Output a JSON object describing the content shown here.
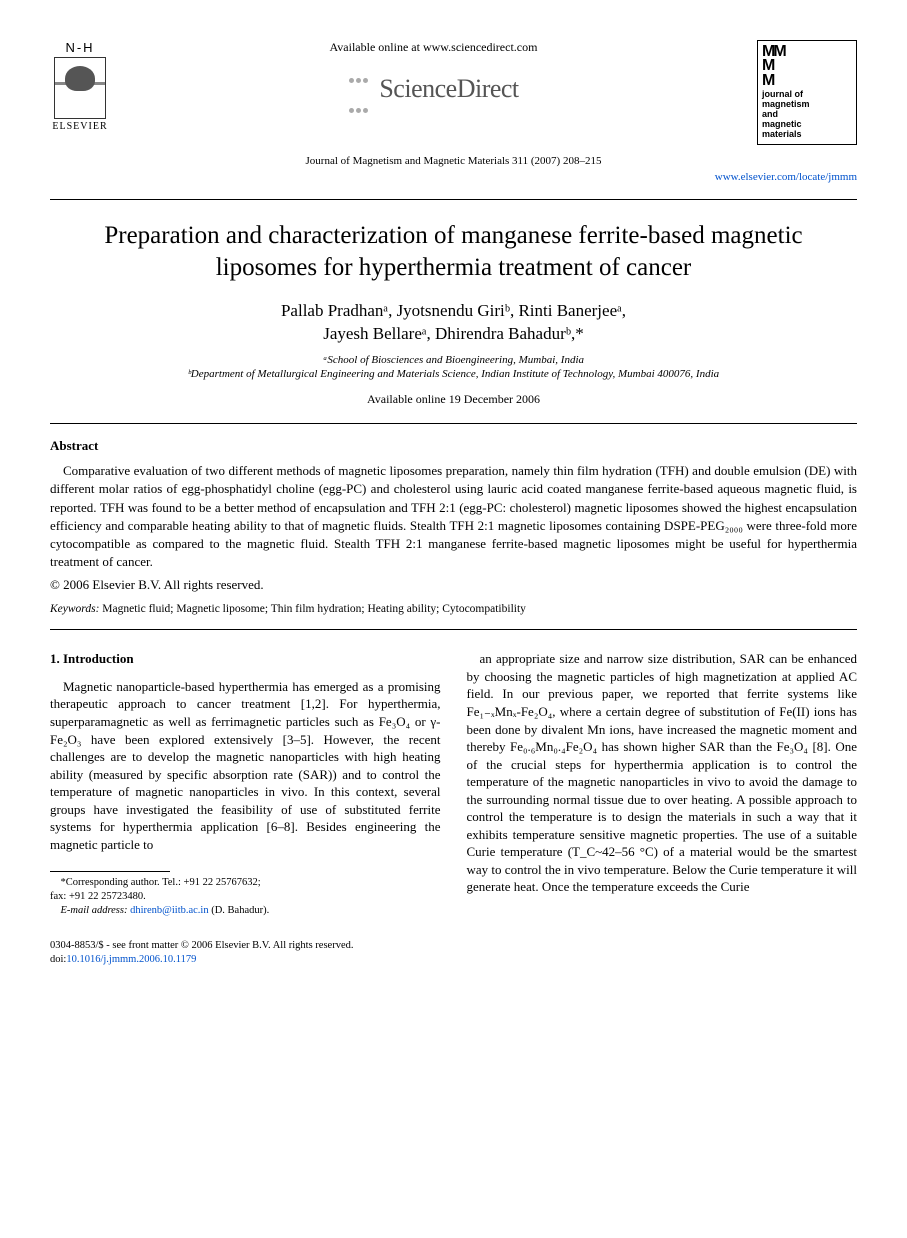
{
  "header": {
    "nh": "N-H",
    "elsevier": "ELSEVIER",
    "available_online": "Available online at www.sciencedirect.com",
    "sciencedirect": "ScienceDirect",
    "journal_ref": "Journal of Magnetism and Magnetic Materials 311 (2007) 208–215",
    "journal_link": "www.elsevier.com/locate/jmmm",
    "journal_logo_lines": [
      "journal of",
      "magnetism",
      "and",
      "magnetic",
      "materials"
    ]
  },
  "title": "Preparation and characterization of manganese ferrite-based magnetic liposomes for hyperthermia treatment of cancer",
  "authors_line1": "Pallab Pradhanᵃ, Jyotsnendu Giriᵇ, Rinti Banerjeeᵃ,",
  "authors_line2": "Jayesh Bellareᵃ, Dhirendra Bahadurᵇ,*",
  "affiliations": {
    "a": "ᵃSchool of Biosciences and Bioengineering, Mumbai, India",
    "b": "ᵇDepartment of Metallurgical Engineering and Materials Science, Indian Institute of Technology, Mumbai 400076, India"
  },
  "available_date": "Available online 19 December 2006",
  "abstract": {
    "heading": "Abstract",
    "body": "Comparative evaluation of two different methods of magnetic liposomes preparation, namely thin film hydration (TFH) and double emulsion (DE) with different molar ratios of egg-phosphatidyl choline (egg-PC) and cholesterol using lauric acid coated manganese ferrite-based aqueous magnetic fluid, is reported. TFH was found to be a better method of encapsulation and TFH 2:1 (egg-PC: cholesterol) magnetic liposomes showed the highest encapsulation efficiency and comparable heating ability to that of magnetic fluids. Stealth TFH 2:1 magnetic liposomes containing DSPE-PEG₂₀₀₀ were three-fold more cytocompatible as compared to the magnetic fluid. Stealth TFH 2:1 manganese ferrite-based magnetic liposomes might be useful for hyperthermia treatment of cancer.",
    "copyright": "© 2006 Elsevier B.V. All rights reserved."
  },
  "keywords": {
    "label": "Keywords:",
    "text": " Magnetic fluid; Magnetic liposome; Thin film hydration; Heating ability; Cytocompatibility"
  },
  "section1": {
    "heading": "1. Introduction",
    "col1": "Magnetic nanoparticle-based hyperthermia has emerged as a promising therapeutic approach to cancer treatment [1,2]. For hyperthermia, superparamagnetic as well as ferrimagnetic particles such as Fe₃O₄ or γ-Fe₂O₃ have been explored extensively [3–5]. However, the recent challenges are to develop the magnetic nanoparticles with high heating ability (measured by specific absorption rate (SAR)) and to control the temperature of magnetic nanoparticles in vivo. In this context, several groups have investigated the feasibility of use of substituted ferrite systems for hyperthermia application [6–8]. Besides engineering the magnetic particle to",
    "col2": "an appropriate size and narrow size distribution, SAR can be enhanced by choosing the magnetic particles of high magnetization at applied AC field. In our previous paper, we reported that ferrite systems like Fe₁₋ₓMnₓ-Fe₂O₄, where a certain degree of substitution of Fe(II) ions has been done by divalent Mn ions, have increased the magnetic moment and thereby Fe₀.₆Mn₀.₄Fe₂O₄ has shown higher SAR than the Fe₃O₄ [8]. One of the crucial steps for hyperthermia application is to control the temperature of the magnetic nanoparticles in vivo to avoid the damage to the surrounding normal tissue due to over heating. A possible approach to control the temperature is to design the materials in such a way that it exhibits temperature sensitive magnetic properties. The use of a suitable Curie temperature (T_C~42–56 °C) of a material would be the smartest way to control the in vivo temperature. Below the Curie temperature it will generate heat. Once the temperature exceeds the Curie"
  },
  "footnote": {
    "corr": "*Corresponding author. Tel.: +91 22 25767632;",
    "fax": "fax: +91 22 25723480.",
    "email_label": "E-mail address: ",
    "email": "dhirenb@iitb.ac.in",
    "email_person": " (D. Bahadur)."
  },
  "footer": {
    "line1": "0304-8853/$ - see front matter © 2006 Elsevier B.V. All rights reserved.",
    "doi_label": "doi:",
    "doi": "10.1016/j.jmmm.2006.10.1179"
  },
  "colors": {
    "link": "#0052cc",
    "text": "#000000",
    "background": "#ffffff",
    "sd_gray": "#666666"
  },
  "typography": {
    "title_fontsize": 25,
    "author_fontsize": 17,
    "body_fontsize": 13,
    "footnote_fontsize": 10.5
  }
}
